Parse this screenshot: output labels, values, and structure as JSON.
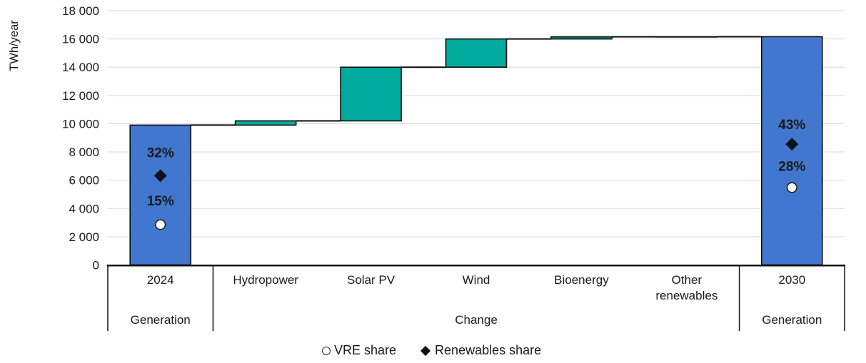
{
  "chart_data": {
    "type": "bar",
    "subtype": "waterfall",
    "title": "",
    "ylabel": "TWh/year",
    "ylim": [
      0,
      18000
    ],
    "y_ticks": [
      {
        "value": 0,
        "label": "0"
      },
      {
        "value": 2000,
        "label": "2 000"
      },
      {
        "value": 4000,
        "label": "4 000"
      },
      {
        "value": 6000,
        "label": "6 000"
      },
      {
        "value": 8000,
        "label": "8 000"
      },
      {
        "value": 10000,
        "label": "10 000"
      },
      {
        "value": 12000,
        "label": "12 000"
      },
      {
        "value": 14000,
        "label": "14 000"
      },
      {
        "value": 16000,
        "label": "16 000"
      },
      {
        "value": 18000,
        "label": "18 000"
      }
    ],
    "categories": [
      "2024",
      "Hydropower",
      "Solar PV",
      "Wind",
      "Bioenergy",
      "Other renewables",
      "2030"
    ],
    "bars": [
      {
        "category": "2024",
        "label_lines": [
          "2024"
        ],
        "start": 0,
        "end": 9900,
        "role": "total"
      },
      {
        "category": "Hydropower",
        "label_lines": [
          "Hydropower"
        ],
        "start": 9900,
        "end": 10200,
        "role": "change"
      },
      {
        "category": "Solar PV",
        "label_lines": [
          "Solar PV"
        ],
        "start": 10200,
        "end": 14000,
        "role": "change"
      },
      {
        "category": "Wind",
        "label_lines": [
          "Wind"
        ],
        "start": 14000,
        "end": 16000,
        "role": "change"
      },
      {
        "category": "Bioenergy",
        "label_lines": [
          "Bioenergy"
        ],
        "start": 16000,
        "end": 16150,
        "role": "change"
      },
      {
        "category": "Other renewables",
        "label_lines": [
          "Other",
          "renewables"
        ],
        "start": 16150,
        "end": 16160,
        "role": "change"
      },
      {
        "category": "2030",
        "label_lines": [
          "2030"
        ],
        "start": 0,
        "end": 16160,
        "role": "total"
      }
    ],
    "axis_groups": [
      {
        "label": "Generation",
        "from_category": 0,
        "to_category": 0
      },
      {
        "label": "Change",
        "from_category": 1,
        "to_category": 5
      },
      {
        "label": "Generation",
        "from_category": 6,
        "to_category": 6
      }
    ],
    "share_markers": [
      {
        "category": "2024",
        "series": "Renewables share",
        "label": "32%",
        "shape": "diamond",
        "label_pos": 7950,
        "marker_pos": 6320,
        "label_style": "dark"
      },
      {
        "category": "2024",
        "series": "VRE share",
        "label": "15%",
        "shape": "circle",
        "label_pos": 4550,
        "marker_pos": 2850,
        "label_style": "light"
      },
      {
        "category": "2030",
        "series": "Renewables share",
        "label": "43%",
        "shape": "diamond",
        "label_pos": 9950,
        "marker_pos": 8550,
        "label_style": "dark"
      },
      {
        "category": "2030",
        "series": "VRE share",
        "label": "28%",
        "shape": "circle",
        "label_pos": 7000,
        "marker_pos": 5480,
        "label_style": "light"
      }
    ],
    "legend": [
      {
        "marker": "circle",
        "label": "VRE share"
      },
      {
        "marker": "diamond",
        "label": "Renewables share"
      }
    ],
    "colors": {
      "total_bar": "#4277CF",
      "change_bar": "#00AB9D",
      "bar_border": "#0D0D0D",
      "gridline": "#D9D9D9",
      "axis": "#0D0D0D",
      "text": "#1A1A1A",
      "share_label_dark": "#10121F",
      "share_label_light": "#FFFFFF",
      "marker_fill_dark": "#10121F",
      "marker_fill_light": "#FFFFFF"
    }
  }
}
